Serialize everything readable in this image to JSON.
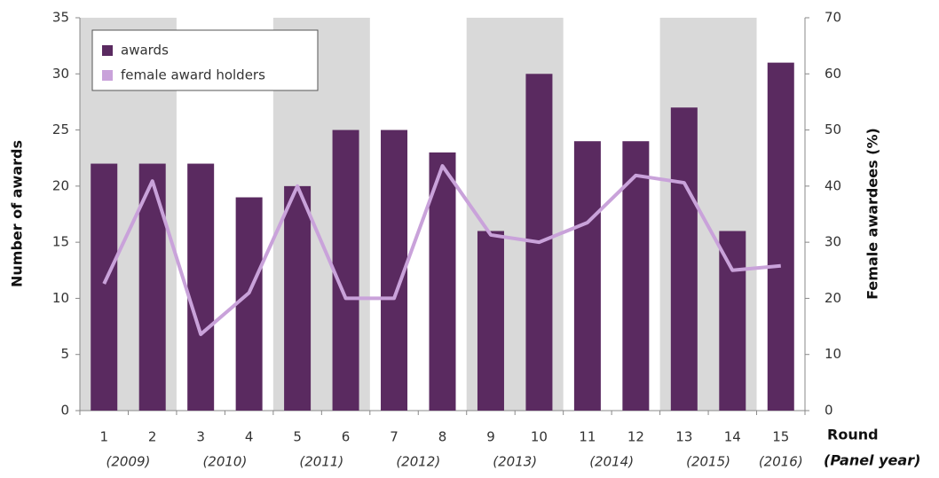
{
  "chart_data": {
    "type": "bar_line",
    "categories": [
      "1",
      "2",
      "3",
      "4",
      "5",
      "6",
      "7",
      "8",
      "9",
      "10",
      "11",
      "12",
      "13",
      "14",
      "15"
    ],
    "year_labels": [
      "(2009)",
      "(2010)",
      "(2011)",
      "(2012)",
      "(2013)",
      "(2014)",
      "(2015)",
      "(2016)"
    ],
    "x_label": "Round",
    "x_label2": "(Panel year)",
    "y_label": "Number of awards",
    "y2_label": "Female awardees (%)",
    "series": [
      {
        "name": "awards",
        "color": "#5a2a60",
        "values": [
          22,
          22,
          22,
          19,
          20,
          25,
          25,
          23,
          16,
          30,
          24,
          24,
          27,
          16,
          31
        ]
      },
      {
        "name": "female award holders",
        "color": "#c9a2da",
        "axis": "y2",
        "values": [
          22.6,
          40.9,
          13.6,
          21,
          40,
          20,
          20,
          43.6,
          31.3,
          30,
          33.5,
          41.9,
          40.6,
          25,
          25.8
        ]
      }
    ],
    "ylim": [
      0,
      35
    ],
    "yticks": [
      0,
      5,
      10,
      15,
      20,
      25,
      30,
      35
    ],
    "y2lim": [
      0,
      70
    ],
    "y2ticks": [
      0,
      10,
      20,
      30,
      40,
      50,
      60,
      70
    ],
    "band_color": "#d9d9d9",
    "legend": "top-left"
  }
}
